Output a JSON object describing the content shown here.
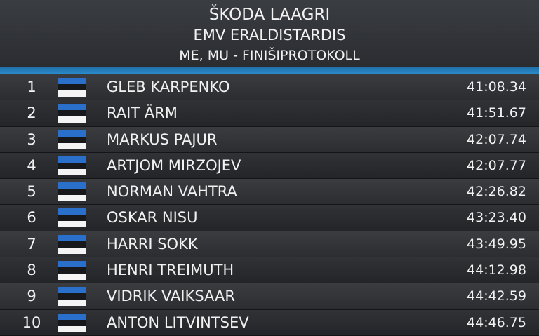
{
  "header": {
    "title": "ŠKODA LAAGRI",
    "subtitle": "EMV ERALDISTARDIS",
    "caption": "ME, MU - FINIŠIPROTOKOLL"
  },
  "table": {
    "rows": [
      {
        "rank": 1,
        "name": "GLEB KARPENKO",
        "time": "41:08.34"
      },
      {
        "rank": 2,
        "name": "RAIT ÄRM",
        "time": "41:51.67"
      },
      {
        "rank": 3,
        "name": "MARKUS PAJUR",
        "time": "42:07.74"
      },
      {
        "rank": 4,
        "name": "ARTJOM MIRZOJEV",
        "time": "42:07.77"
      },
      {
        "rank": 5,
        "name": "NORMAN VAHTRA",
        "time": "42:26.82"
      },
      {
        "rank": 6,
        "name": "OSKAR NISU",
        "time": "43:23.40"
      },
      {
        "rank": 7,
        "name": "HARRI SOKK",
        "time": "43:49.95"
      },
      {
        "rank": 8,
        "name": "HENRI TREIMUTH",
        "time": "44:12.98"
      },
      {
        "rank": 9,
        "name": "VIDRIK VAIKSAAR",
        "time": "44:42.59"
      },
      {
        "rank": 10,
        "name": "ANTON LITVINTSEV",
        "time": "44:46.75"
      }
    ]
  }
}
